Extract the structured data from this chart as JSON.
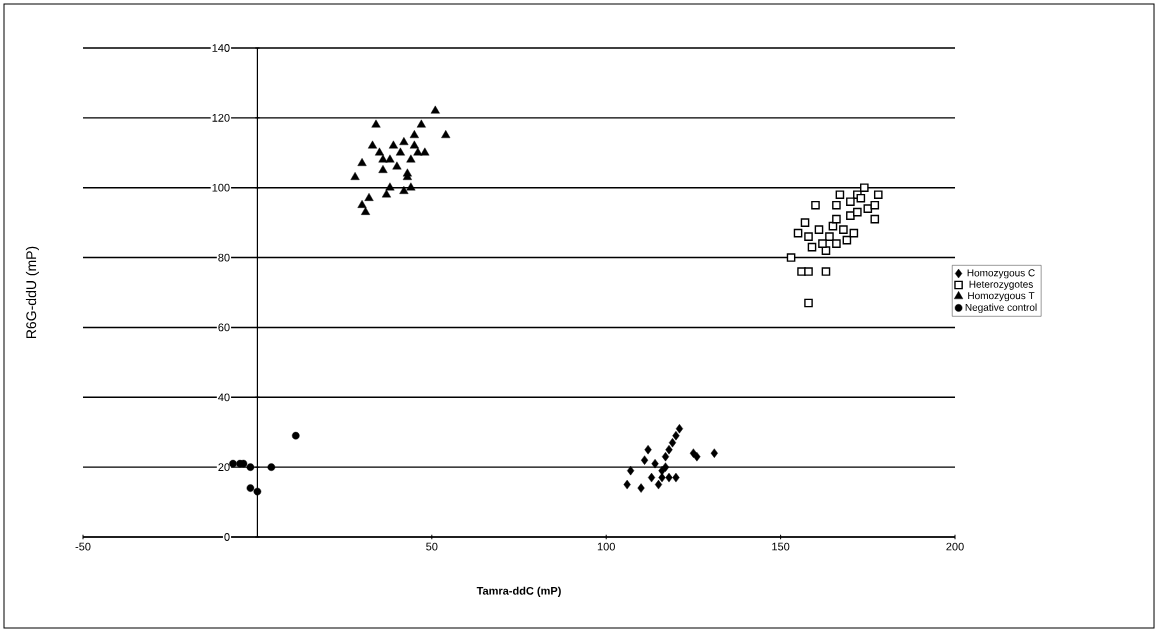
{
  "chart_data": {
    "type": "scatter",
    "xlabel": "Tamra-ddC (mP)",
    "ylabel": "R6G-ddU (mP)",
    "xlim": [
      -50,
      200
    ],
    "xticks": [
      -50,
      50,
      100,
      150,
      200
    ],
    "ylim": [
      0,
      140
    ],
    "yticks": [
      0,
      20,
      40,
      60,
      80,
      100,
      120,
      140
    ],
    "grid": "y",
    "legend": "right",
    "series": [
      {
        "name": "Homozygous C",
        "color": "#000000",
        "marker": "diamond",
        "x": [
          106,
          107,
          110,
          111,
          112,
          113,
          114,
          115,
          116,
          117,
          118,
          118,
          119,
          120,
          121,
          120,
          125,
          126,
          131,
          116,
          117
        ],
        "values": [
          15,
          19,
          14,
          22,
          25,
          17,
          21,
          15,
          19,
          23,
          25,
          17,
          27,
          29,
          31,
          17,
          24,
          23,
          24,
          17,
          20
        ]
      },
      {
        "name": "Heterozygotes",
        "color": "#000000",
        "marker": "square",
        "x": [
          153,
          155,
          156,
          157,
          158,
          158,
          158,
          159,
          160,
          161,
          163,
          163,
          164,
          165,
          166,
          166,
          166,
          167,
          168,
          169,
          170,
          171,
          172,
          172,
          173,
          174,
          175,
          177,
          177,
          178,
          170,
          162
        ],
        "values": [
          80,
          87,
          76,
          90,
          67,
          76,
          86,
          83,
          95,
          88,
          76,
          82,
          86,
          89,
          84,
          91,
          95,
          98,
          88,
          85,
          92,
          87,
          98,
          93,
          97,
          100,
          94,
          91,
          95,
          98,
          96,
          84
        ]
      },
      {
        "name": "Homozygous T",
        "color": "#000000",
        "marker": "triangle",
        "x": [
          28,
          30,
          30,
          31,
          32,
          33,
          34,
          35,
          36,
          37,
          38,
          38,
          39,
          40,
          41,
          42,
          42,
          43,
          44,
          44,
          45,
          45,
          46,
          47,
          48,
          51,
          54,
          36,
          43
        ],
        "values": [
          103,
          107,
          95,
          93,
          97,
          112,
          118,
          110,
          108,
          98,
          100,
          108,
          112,
          106,
          110,
          99,
          113,
          104,
          100,
          108,
          112,
          115,
          110,
          118,
          110,
          122,
          115,
          105,
          103
        ]
      },
      {
        "name": "Negative control",
        "color": "#000000",
        "marker": "circle",
        "x": [
          -7,
          -5,
          -4,
          -2,
          -2,
          0,
          4,
          11
        ],
        "values": [
          21,
          21,
          21,
          20,
          14,
          13,
          20,
          29
        ]
      }
    ]
  }
}
